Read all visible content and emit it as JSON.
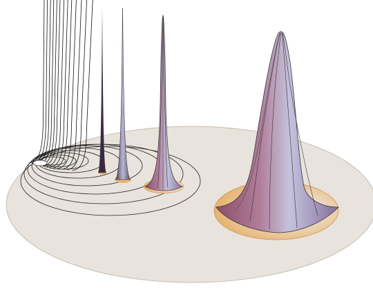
{
  "colors": {
    "background": "#ffffff",
    "disk": "#e8e3dc",
    "disk_edge": "#b8b0a8",
    "base_tan": "#e8b878",
    "base_blue": "#dfe8f2",
    "peak_lavender": "#c2c0dc",
    "peak_mauve": "#a8708a",
    "contour_line": "#222222"
  }
}
